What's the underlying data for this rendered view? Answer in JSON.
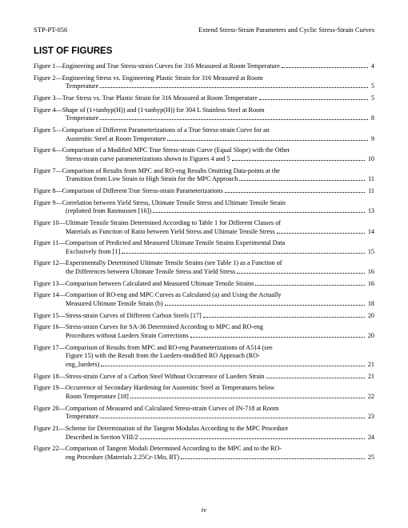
{
  "header": {
    "left": "STP-PT-056",
    "right": "Extend Stress-Strain Parameters and Cyclic Stress-Strain Curves"
  },
  "section_title": "LIST OF FIGURES",
  "footer": "iv",
  "figures": [
    {
      "label": "Figure 1—",
      "lines": [
        "Engineering and True Stress-strain Curves for 316 Measured at Room Temperature"
      ],
      "page": "4"
    },
    {
      "label": "Figure 2—",
      "lines": [
        "Engineering Stress vs. Engineering Plastic Strain for 316 Measured at Room",
        "Temperature"
      ],
      "page": "5"
    },
    {
      "label": "Figure 3—",
      "lines": [
        "True Stress vs. True Plastic Strain for 316 Measured at Room Temperature"
      ],
      "page": "5"
    },
    {
      "label": "Figure 4—",
      "lines": [
        "Shape of (1+tanhyp(H)) and (1-tanhyp(H)) for 304 L Stainless Steel at Room",
        "Temperature"
      ],
      "page": "8"
    },
    {
      "label": "Figure 5—",
      "lines": [
        "Comparison of Different Parameterizations of a True Stress-strain Curve for an",
        "Austenitic Steel at Room Temperature"
      ],
      "page": "9"
    },
    {
      "label": "Figure 6—",
      "lines": [
        "Comparison of a Modified MPC True Stress-strain Curve (Equal Slope) with the Other",
        "Stress-strain curve parameterizations shown in Figures 4 and 5"
      ],
      "page": "10"
    },
    {
      "label": "Figure 7—",
      "lines": [
        "Comparison of Results from MPC and RO-eng Results Omitting Data-points at the",
        "Transition from Low Strain to High Strain for the MPC Approach"
      ],
      "page": "11"
    },
    {
      "label": "Figure 8—",
      "lines": [
        "Comparison of Different True Stress-strain Parameterizations"
      ],
      "page": "11"
    },
    {
      "label": "Figure 9—",
      "lines": [
        "Correlation between Yield Stress, Ultimate Tensile Stress and Ultimate Tensile Strain",
        "(replotted from Rasmussen [16])"
      ],
      "page": "13"
    },
    {
      "label": "Figure 10—",
      "lines": [
        "Ultimate Tensile Strains Determined According to Table 1 for Different Classes of",
        "Materials as Function of Ratio between Yield Stress and Ultimate Tensile Stress"
      ],
      "page": "14"
    },
    {
      "label": "Figure 11—",
      "lines": [
        "Comparison of Predicted and Measured Ultimate Tensile Strains Experimental Data",
        "Exclusively from [1]"
      ],
      "page": "15"
    },
    {
      "label": "Figure 12—",
      "lines": [
        "Experimentally Determined Ultimate Tensile Strains (see Table 1) as a Function of",
        "the Differences between Ultimate Tensile Stress and Yield Stress"
      ],
      "page": "16"
    },
    {
      "label": "Figure 13—",
      "lines": [
        "Comparison between Calculated and Measured Ultimate Tensile Strains"
      ],
      "page": "16"
    },
    {
      "label": "Figure 14—",
      "lines": [
        "Comparison of RO-eng and MPC Curves as Calculated (a) and Using the Actually",
        "Measured Ultimate Tensile Strain (b)"
      ],
      "page": "18"
    },
    {
      "label": "Figure 15—",
      "lines": [
        "Stress-strain Curves of Different Carbon Steels [17]"
      ],
      "page": "20"
    },
    {
      "label": "Figure 16—",
      "lines": [
        "Stress-strain Curves for SA-36 Determined According to MPC and RO-eng",
        "Procedures without Lueders Strain Corrections"
      ],
      "page": "20"
    },
    {
      "label": "Figure 17—",
      "lines": [
        "Comparison of Results from MPC and RO-eng Parameterizations of A514 (see",
        "Figure 15) with the Result from the Lueders-modified RO Approach (RO-",
        "eng_lueders)"
      ],
      "page": "21"
    },
    {
      "label": "Figure 18—",
      "lines": [
        "Stress-strain Curve of a Carbon Steel Without Occurrence of Lueders Strain"
      ],
      "page": "21"
    },
    {
      "label": "Figure 19—",
      "lines": [
        "Occurrence of Secondary Hardening for Austenitic Steel at Temperatures below",
        "Room Temperature [18]"
      ],
      "page": "22"
    },
    {
      "label": "Figure 20—",
      "lines": [
        "Comparison of Measured and Calculated Stress-strain Curves of IN-718 at Room",
        "Temperature"
      ],
      "page": "23"
    },
    {
      "label": "Figure 21—",
      "lines": [
        "Scheme for Determination of the Tangent Modulus According to the MPC Procedure",
        "Described in Section VIII/2"
      ],
      "page": "24"
    },
    {
      "label": "Figure 22—",
      "lines": [
        "Comparison of Tangent Moduli Determined According to the MPC and to the RO-",
        "eng Procedure (Materials 2.25Cr-1Mo, RT)"
      ],
      "page": "25"
    }
  ]
}
